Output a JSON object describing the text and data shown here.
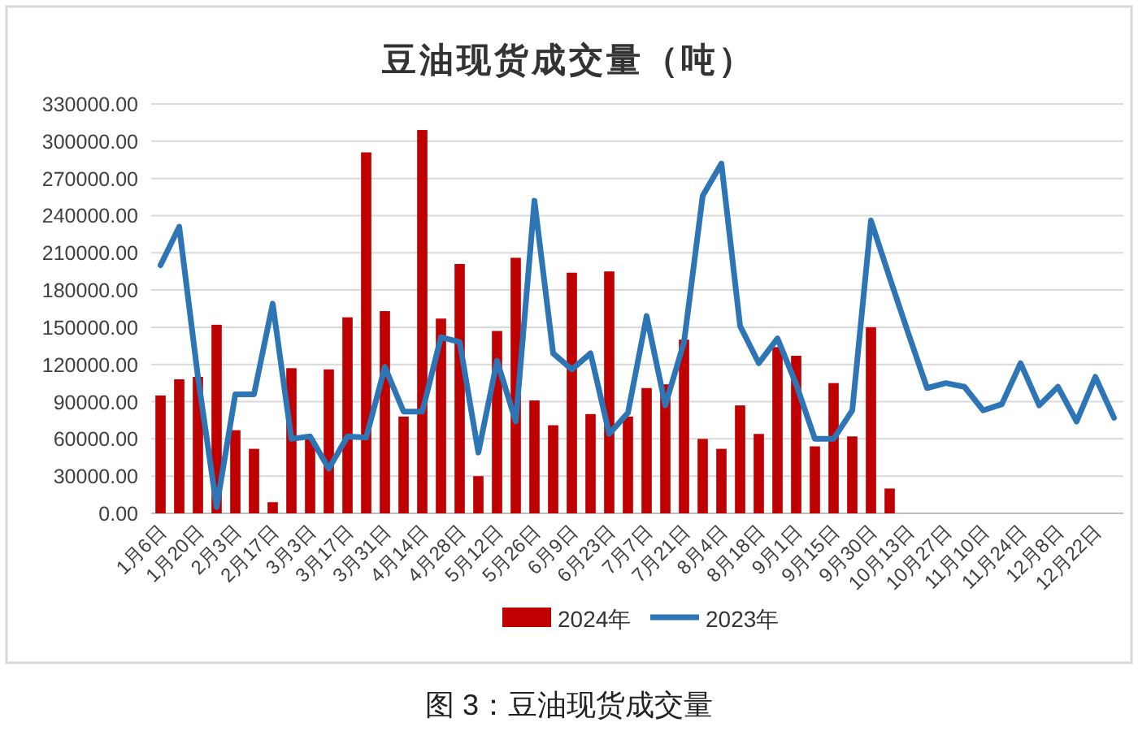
{
  "chart_data": {
    "type": "bar",
    "title": "豆油现货成交量（吨）",
    "categories": [
      "1月6日",
      null,
      "1月20日",
      null,
      "2月3日",
      null,
      "2月17日",
      null,
      "3月3日",
      null,
      "3月17日",
      null,
      "3月31日",
      null,
      "4月14日",
      null,
      "4月28日",
      null,
      "5月12日",
      null,
      "5月26日",
      null,
      "6月9日",
      null,
      "6月23日",
      null,
      "7月7日",
      null,
      "7月21日",
      null,
      "8月4日",
      null,
      "8月18日",
      null,
      "9月1日",
      null,
      "9月15日",
      null,
      "9月30日",
      null,
      "10月13日",
      null,
      "10月27日",
      null,
      "11月10日",
      null,
      "11月24日",
      null,
      "12月8日",
      null,
      "12月22日",
      null
    ],
    "series": [
      {
        "name": "2024年",
        "color": "#c00000",
        "values": [
          95000,
          108000,
          110000,
          152000,
          67000,
          52000,
          9000,
          117000,
          60000,
          116000,
          158000,
          291000,
          163000,
          78000,
          309000,
          157000,
          201000,
          30000,
          147000,
          206000,
          91000,
          71000,
          194000,
          80000,
          195000,
          78000,
          101000,
          104000,
          140000,
          60000,
          52000,
          87000,
          64000,
          134000,
          127000,
          54000,
          105000,
          62000,
          150000,
          20000,
          null,
          null,
          null,
          null,
          null,
          null,
          null,
          null,
          null,
          null,
          null,
          null
        ]
      },
      {
        "name": "2023年",
        "type": "line",
        "color": "#2e75b6",
        "values": [
          200000,
          231000,
          110000,
          5000,
          96000,
          96000,
          169000,
          60000,
          62000,
          36000,
          62000,
          61000,
          118000,
          82000,
          82000,
          142000,
          138000,
          49000,
          123000,
          74000,
          252000,
          129000,
          116000,
          129000,
          64000,
          81000,
          159000,
          87000,
          138000,
          256000,
          282000,
          151000,
          121000,
          141000,
          104000,
          60000,
          60000,
          83000,
          236000,
          190000,
          145000,
          101000,
          105000,
          102000,
          83000,
          88000,
          121000,
          87000,
          102000,
          74000,
          110000,
          77000
        ]
      }
    ],
    "ylim": [
      0,
      330000
    ],
    "yticks": [
      {
        "value": 0,
        "label": "0.00"
      },
      {
        "value": 30000,
        "label": "30000.00"
      },
      {
        "value": 60000,
        "label": "60000.00"
      },
      {
        "value": 90000,
        "label": "90000.00"
      },
      {
        "value": 120000,
        "label": "120000.00"
      },
      {
        "value": 150000,
        "label": "150000.00"
      },
      {
        "value": 180000,
        "label": "180000.00"
      },
      {
        "value": 210000,
        "label": "210000.00"
      },
      {
        "value": 240000,
        "label": "240000.00"
      },
      {
        "value": 270000,
        "label": "270000.00"
      },
      {
        "value": 300000,
        "label": "300000.00"
      },
      {
        "value": 330000,
        "label": "330000.00"
      }
    ],
    "grid": "y",
    "legend": "bottom",
    "marker": "none",
    "line_style": "solid",
    "annotations": [
      "图 3：豆油现货成交量"
    ]
  }
}
